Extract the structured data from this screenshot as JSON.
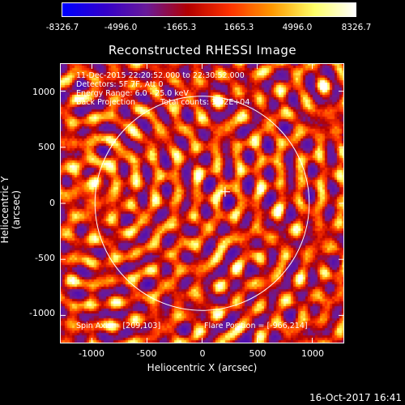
{
  "colorbar": {
    "ticks": [
      "-8326.7",
      "-4996.0",
      "-1665.3",
      "1665.3",
      "4996.0",
      "8326.7"
    ],
    "colors": [
      "#0000ff",
      "#3300cc",
      "#6a1b9a",
      "#b30000",
      "#ff3300",
      "#ff9900",
      "#ffff66",
      "#ffffff"
    ]
  },
  "title": "Reconstructed RHESSI Image",
  "info": {
    "time": "11-Dec-2015 22:20:52.000 to 22:30:52.000",
    "detectors": "Detectors: 5F 7F, Att 0",
    "energy": "Energy Range: 6.0 - 25.0 keV",
    "method": "Back Projection",
    "counts": "Total counts: 3.02E+04",
    "spin_axis": "Spin Axis = [209,103]",
    "flare_position": "Flare Position = [-966,214]"
  },
  "axes": {
    "xlabel": "Heliocentric X (arcsec)",
    "ylabel": "Heliocentric Y (arcsec)",
    "xticks": [
      "-1000",
      "-500",
      "0",
      "500",
      "1000"
    ],
    "yticks": [
      "1000",
      "500",
      "0",
      "-500",
      "-1000"
    ],
    "xlim": [
      -1290,
      1290
    ],
    "ylim": [
      -1250,
      1250
    ]
  },
  "overlay": {
    "solar_limb_radius_arcsec": 972,
    "spin_axis_marker": [
      209,
      103
    ],
    "line_color": "#ffffff"
  },
  "datestamp": "16-Oct-2017 16:41"
}
